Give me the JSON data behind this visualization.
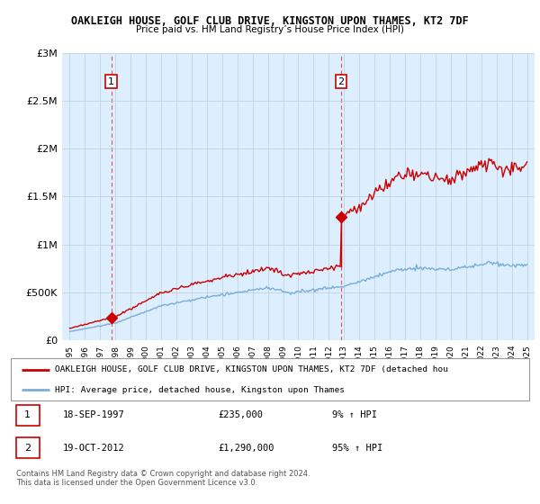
{
  "title1": "OAKLEIGH HOUSE, GOLF CLUB DRIVE, KINGSTON UPON THAMES, KT2 7DF",
  "title2": "Price paid vs. HM Land Registry’s House Price Index (HPI)",
  "ylabel_ticks": [
    "£0",
    "£500K",
    "£1M",
    "£1.5M",
    "£2M",
    "£2.5M",
    "£3M"
  ],
  "ytick_vals": [
    0,
    500000,
    1000000,
    1500000,
    2000000,
    2500000,
    3000000
  ],
  "ylim": [
    0,
    3000000
  ],
  "sale1_year": 1997.72,
  "sale1_price": 235000,
  "sale2_year": 2012.8,
  "sale2_price": 1290000,
  "legend_line1": "OAKLEIGH HOUSE, GOLF CLUB DRIVE, KINGSTON UPON THAMES, KT2 7DF (detached hou",
  "legend_line2": "HPI: Average price, detached house, Kingston upon Thames",
  "table_row1": [
    "1",
    "18-SEP-1997",
    "£235,000",
    "9% ↑ HPI"
  ],
  "table_row2": [
    "2",
    "19-OCT-2012",
    "£1,290,000",
    "95% ↑ HPI"
  ],
  "footer": "Contains HM Land Registry data © Crown copyright and database right 2024.\nThis data is licensed under the Open Government Licence v3.0.",
  "red_color": "#cc0000",
  "blue_color": "#7aaed4",
  "dashed_red": "#dd4444",
  "chart_bg": "#ddeeff",
  "fig_bg": "#ffffff",
  "grid_color": "#bbccdd"
}
